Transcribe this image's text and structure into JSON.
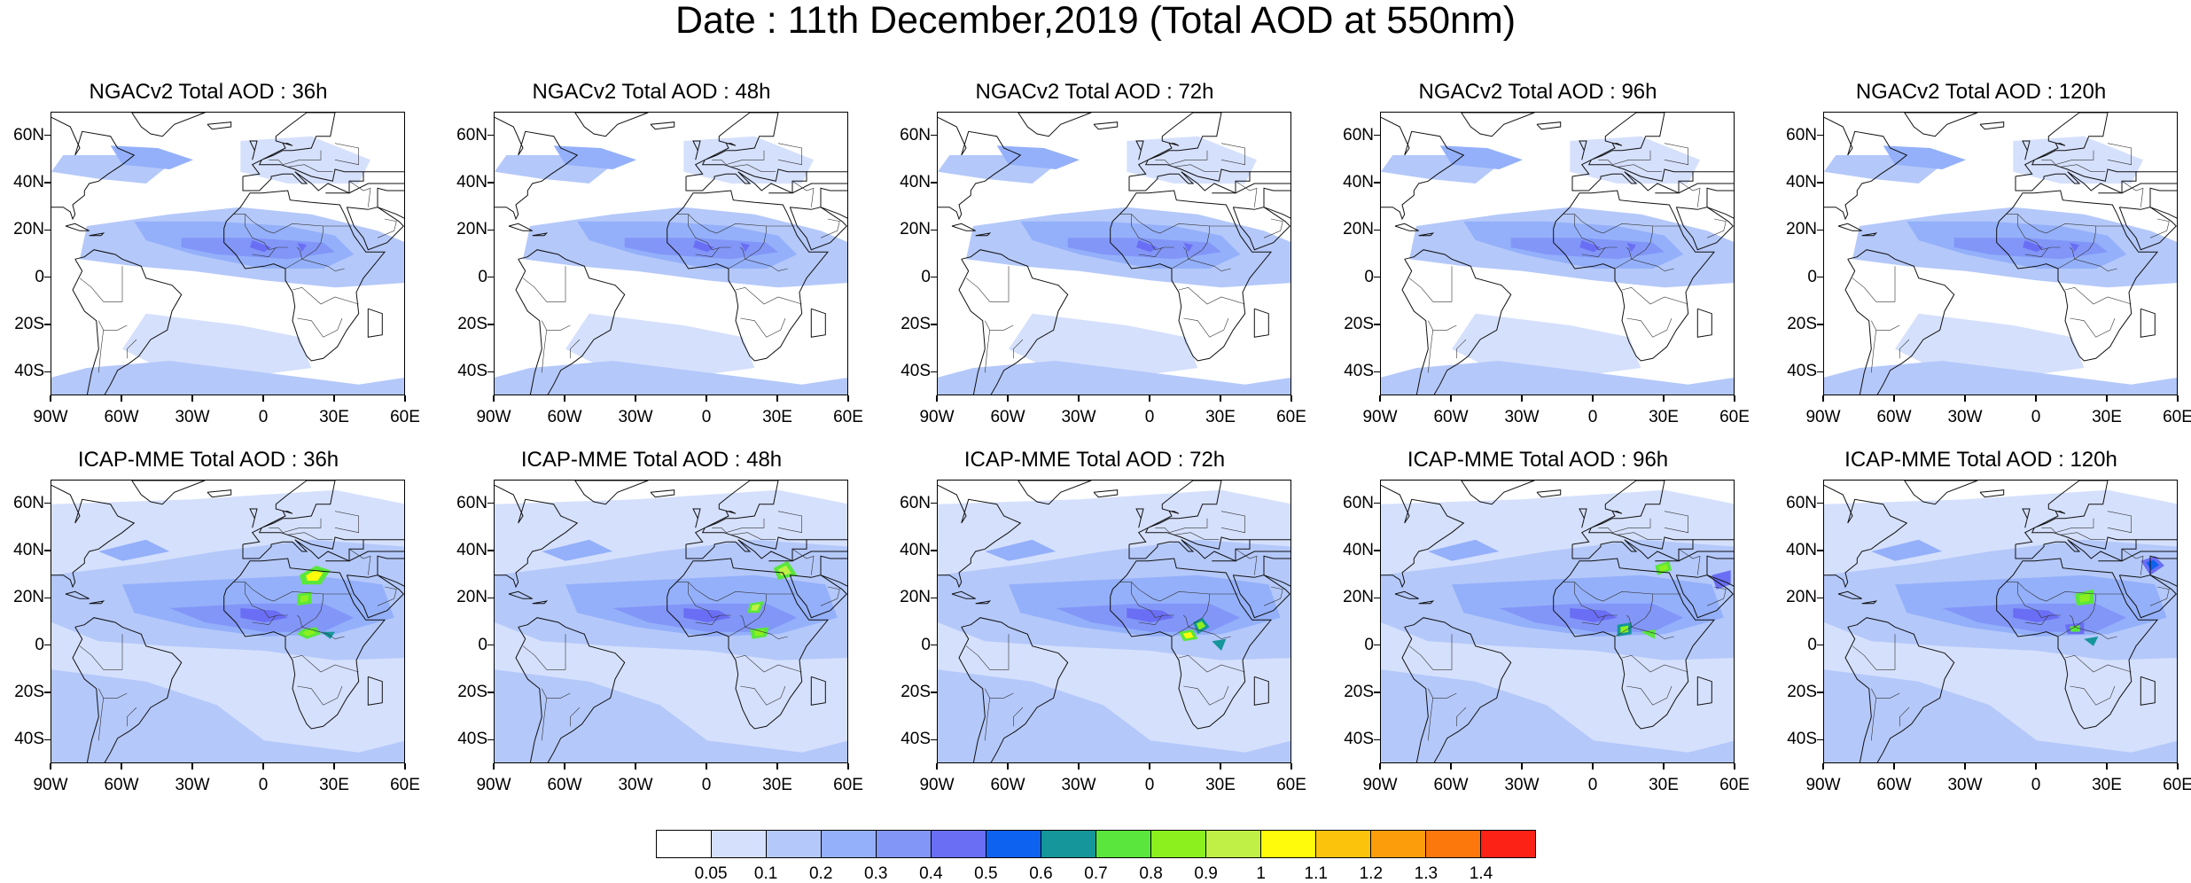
{
  "title": "Date : 11th December,2019 (Total AOD at 550nm)",
  "lat_ticks": [
    "60N",
    "40N",
    "20N",
    "0",
    "20S",
    "40S"
  ],
  "lon_ticks": [
    "90W",
    "60W",
    "30W",
    "0",
    "30E",
    "60E"
  ],
  "map_extent": {
    "lon": [
      -90,
      60
    ],
    "lat": [
      -50,
      70
    ]
  },
  "colorbar": {
    "colors": [
      "#ffffff",
      "#d5e0fc",
      "#b4c8fa",
      "#94b0fa",
      "#8296f8",
      "#6a6ef4",
      "#0d62f0",
      "#14969a",
      "#5ae63c",
      "#8cf01e",
      "#c0f046",
      "#fffb0b",
      "#fcc30c",
      "#fc9e0b",
      "#fc770c",
      "#fc2216"
    ],
    "labels": [
      "0.05",
      "0.1",
      "0.2",
      "0.3",
      "0.4",
      "0.5",
      "0.6",
      "0.7",
      "0.8",
      "0.9",
      "1",
      "1.1",
      "1.2",
      "1.3",
      "1.4"
    ]
  },
  "panels": [
    {
      "title": "NGACv2 Total AOD : 36h"
    },
    {
      "title": "NGACv2 Total AOD : 48h"
    },
    {
      "title": "NGACv2 Total AOD : 72h"
    },
    {
      "title": "NGACv2 Total AOD : 96h"
    },
    {
      "title": "NGACv2 Total AOD : 120h"
    },
    {
      "title": "ICAP-MME Total AOD : 36h"
    },
    {
      "title": "ICAP-MME Total AOD : 48h"
    },
    {
      "title": "ICAP-MME Total AOD : 72h"
    },
    {
      "title": "ICAP-MME Total AOD : 96h"
    },
    {
      "title": "ICAP-MME Total AOD : 120h"
    }
  ]
}
